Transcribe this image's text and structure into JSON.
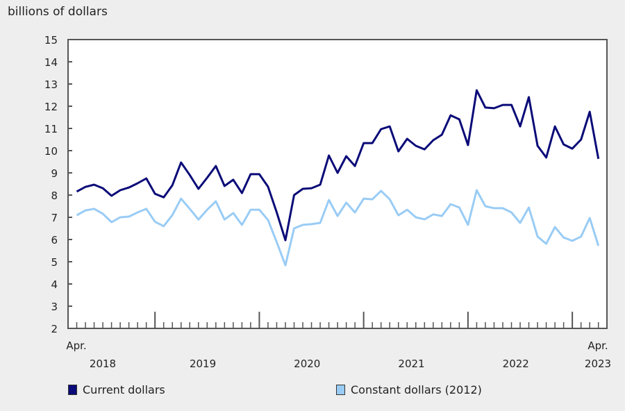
{
  "chart_data": {
    "type": "line",
    "ylabel": "billions of dollars",
    "ylim": [
      2,
      15
    ],
    "yticks": [
      2,
      3,
      4,
      5,
      6,
      7,
      8,
      9,
      10,
      11,
      12,
      13,
      14,
      15
    ],
    "grid": false,
    "x_start": "Apr. 2018",
    "x_end": "Apr. 2023",
    "x_first_label": {
      "month": "Apr.",
      "year": "2018"
    },
    "x_last_label": {
      "month": "Apr.",
      "year": "2023"
    },
    "year_labels": [
      "2019",
      "2020",
      "2021",
      "2022"
    ],
    "legend_position": "bottom",
    "series": [
      {
        "name": "Current dollars",
        "color": "#0a0a78",
        "values": [
          8.16,
          8.37,
          8.47,
          8.31,
          7.97,
          8.22,
          8.34,
          8.53,
          8.75,
          8.06,
          7.9,
          8.44,
          9.47,
          8.9,
          8.28,
          8.78,
          9.31,
          8.41,
          8.69,
          8.09,
          8.94,
          8.94,
          8.38,
          7.22,
          5.97,
          8.0,
          8.28,
          8.31,
          8.47,
          9.78,
          9.0,
          9.75,
          9.31,
          10.34,
          10.34,
          10.97,
          11.09,
          9.97,
          10.53,
          10.22,
          10.06,
          10.47,
          10.72,
          11.59,
          11.41,
          10.25,
          12.72,
          11.94,
          11.91,
          12.06,
          12.06,
          11.09,
          12.41,
          10.22,
          9.69,
          11.09,
          10.28,
          10.09,
          10.5,
          11.75,
          9.63
        ]
      },
      {
        "name": "Constant dollars (2012)",
        "color": "#99ccf5",
        "values": [
          7.09,
          7.31,
          7.38,
          7.16,
          6.78,
          7.0,
          7.03,
          7.22,
          7.38,
          6.8,
          6.6,
          7.1,
          7.84,
          7.38,
          6.9,
          7.34,
          7.72,
          6.9,
          7.19,
          6.66,
          7.34,
          7.34,
          6.88,
          5.88,
          4.84,
          6.5,
          6.66,
          6.69,
          6.75,
          7.78,
          7.06,
          7.66,
          7.22,
          7.84,
          7.81,
          8.19,
          7.81,
          7.09,
          7.34,
          7.0,
          6.91,
          7.13,
          7.06,
          7.59,
          7.44,
          6.66,
          8.22,
          7.5,
          7.41,
          7.41,
          7.22,
          6.75,
          7.44,
          6.13,
          5.81,
          6.56,
          6.09,
          5.94,
          6.13,
          6.97,
          5.72
        ]
      }
    ]
  }
}
